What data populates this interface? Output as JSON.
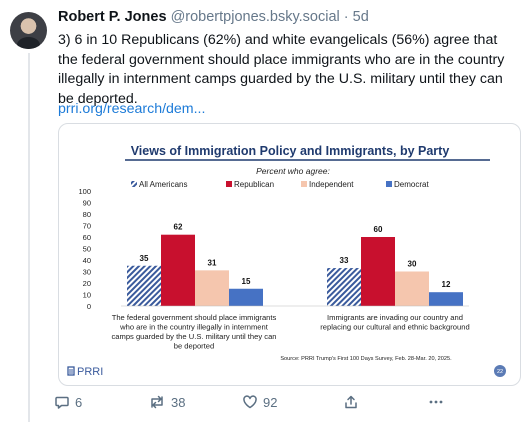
{
  "post": {
    "author": "Robert P. Jones",
    "handle": "@robertpjones.bsky.social",
    "separator": "·",
    "time": "5d",
    "text": "3) 6 in 10 Republicans (62%) and white evangelicals (56%) agree that the federal government should place immigrants who are in the country illegally in internment camps guarded by the U.S. military until they can be deported.",
    "link": "prri.org/research/dem..."
  },
  "chart_data": {
    "type": "bar",
    "title": "Views of Immigration Policy and Immigrants, by Party",
    "subtitle": "Percent who agree:",
    "categories": [
      "The federal government should place immigrants who are in the country illegally in internment camps guarded by the U.S. military until they can be deported",
      "Immigrants are invading our country and replacing our cultural and ethnic background"
    ],
    "category_lines": [
      [
        "The federal government should place immigrants",
        "who are in the country illegally in internment",
        "camps guarded by the U.S. military until they can",
        "be deported"
      ],
      [
        "Immigrants are invading our country and",
        "replacing our cultural and ethnic background"
      ]
    ],
    "series": [
      {
        "name": "All Americans",
        "values": [
          35,
          33
        ],
        "color": "#3a5a9c",
        "pattern": "hatch"
      },
      {
        "name": "Republican",
        "values": [
          62,
          60
        ],
        "color": "#c8102e"
      },
      {
        "name": "Independent",
        "values": [
          31,
          30
        ],
        "color": "#f5c6ae"
      },
      {
        "name": "Democrat",
        "values": [
          15,
          12
        ],
        "color": "#4672c4"
      }
    ],
    "yticks": [
      "100",
      "90",
      "80",
      "70",
      "60",
      "50",
      "40",
      "30",
      "20",
      "10",
      "0"
    ],
    "ylim": [
      0,
      100
    ],
    "source": "Source: PRRI Trump's First 100 Days Survey, Feb. 28-Mar. 20, 2025.",
    "logo": "PRRI",
    "page_badge": "22",
    "legend_position": "top",
    "grid": false
  },
  "actions": {
    "replies": "6",
    "reposts": "38",
    "likes": "92"
  },
  "colors": {
    "link": "#1d7bd8",
    "muted": "#66788a",
    "title_navy": "#1f3a6e"
  }
}
